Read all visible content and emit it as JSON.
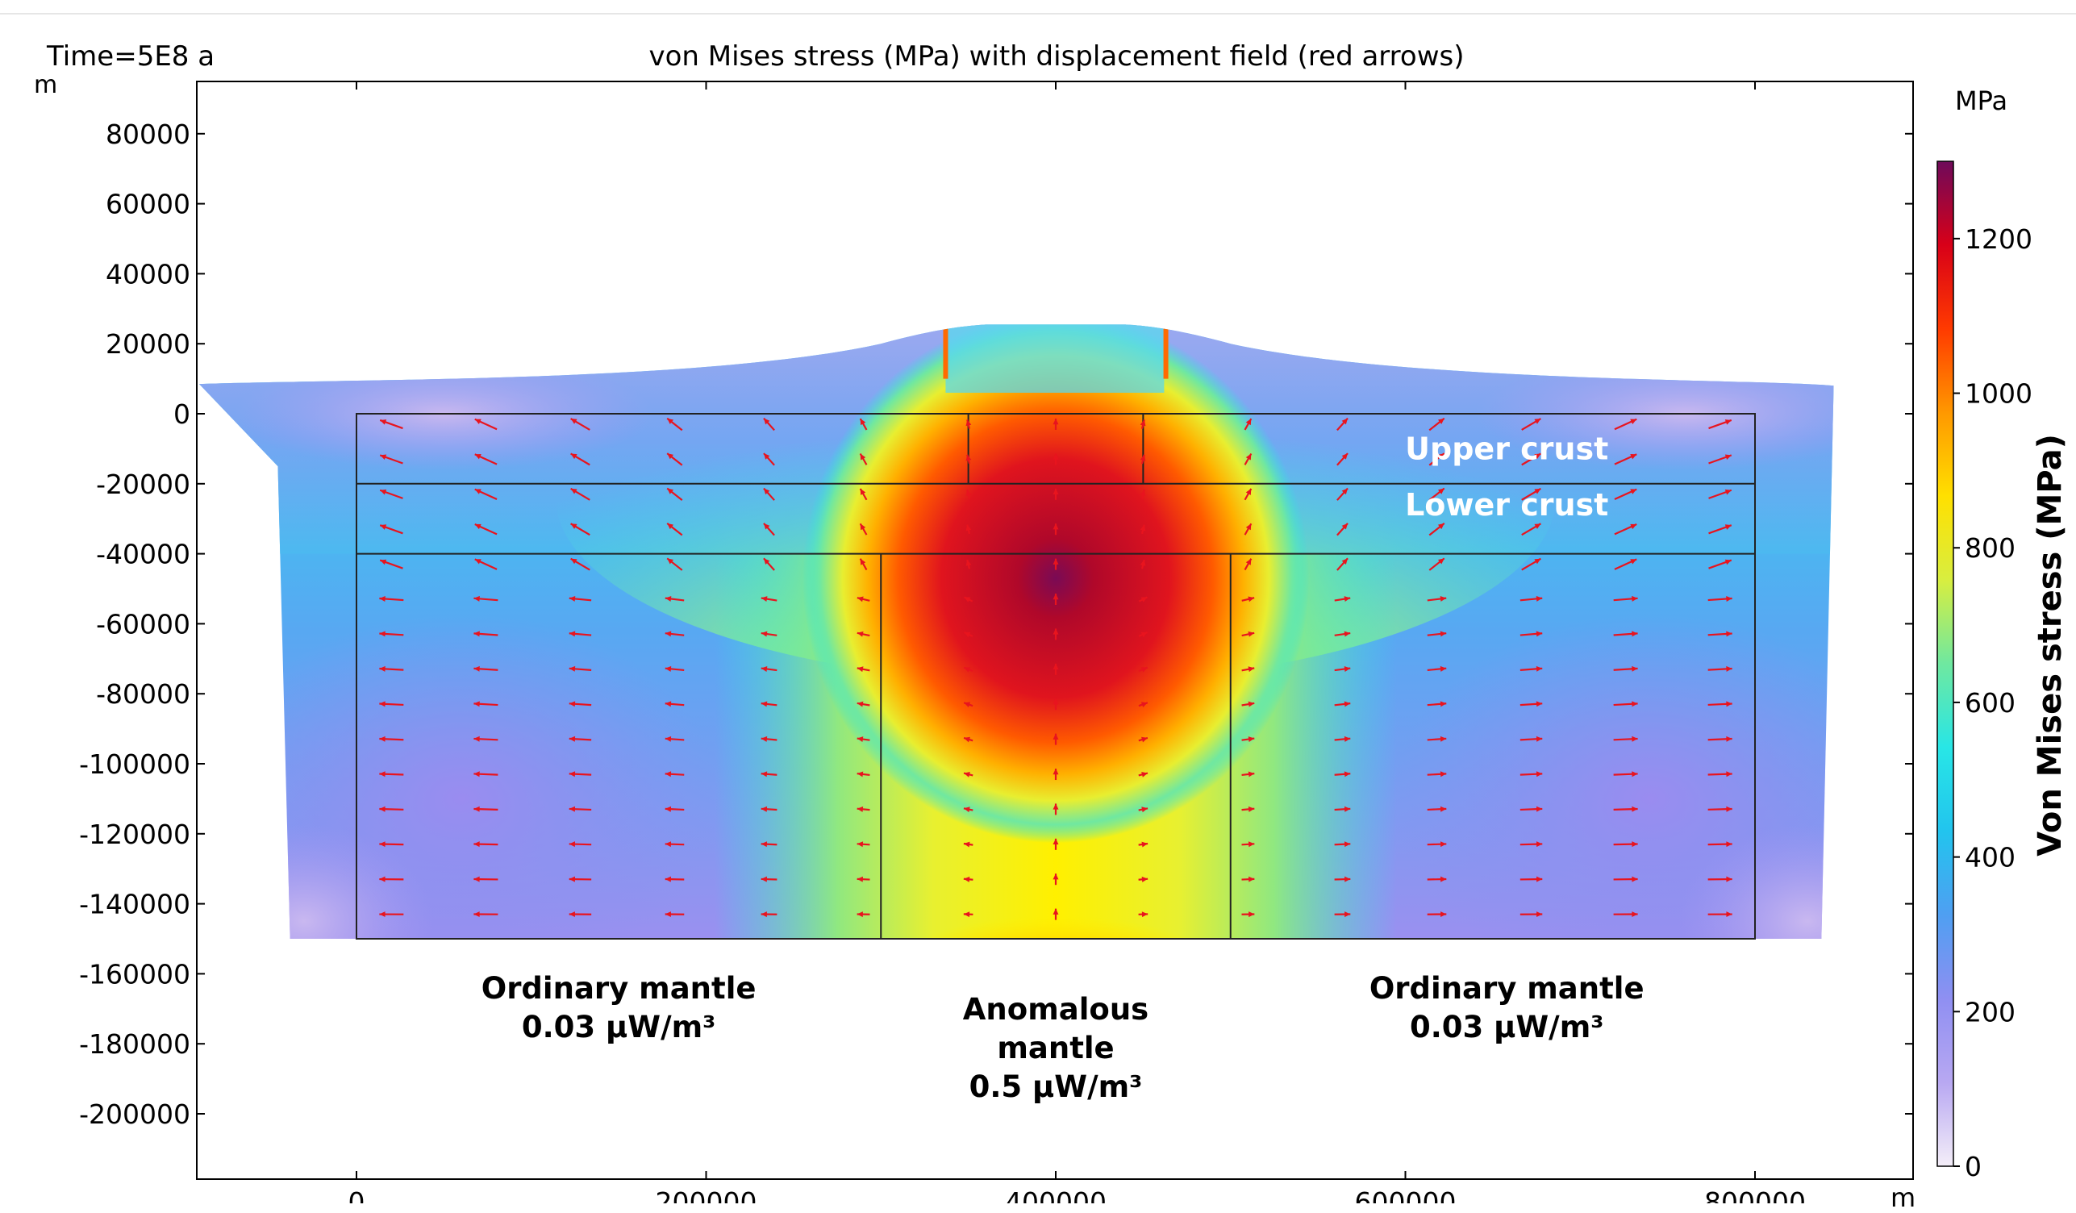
{
  "plot": {
    "time_label": "Time=5E8 a",
    "title": "von Mises stress (MPa) with displacement field (red arrows)",
    "y_unit": "m",
    "x_unit": "m"
  },
  "colorbar": {
    "unit": "MPa",
    "title": "Von Mises stress (MPa)",
    "range": [
      0,
      1300
    ],
    "ticks": [
      0,
      200,
      400,
      600,
      800,
      1000,
      1200
    ],
    "colormap": [
      "#f4eef8",
      "#b8a8f2",
      "#8f8ff2",
      "#4f9ff2",
      "#22c4ee",
      "#28e6e6",
      "#6fe8a0",
      "#d8ee40",
      "#ffe000",
      "#ff9800",
      "#ff3a00",
      "#d80018",
      "#6e0a5a"
    ]
  },
  "chart_data": {
    "type": "heatmap",
    "title": "von Mises stress (MPa) with displacement field (red arrows)",
    "xlabel": "m",
    "ylabel": "m",
    "xlim": [
      -90000,
      890000
    ],
    "ylim": [
      -218000,
      95000
    ],
    "x_ticks": [
      0,
      200000,
      400000,
      600000,
      800000
    ],
    "y_ticks": [
      80000,
      60000,
      40000,
      20000,
      0,
      -20000,
      -40000,
      -60000,
      -80000,
      -100000,
      -120000,
      -140000,
      -160000,
      -180000,
      -200000
    ],
    "field": "von Mises stress (MPa)",
    "max_stress_approx": 1300,
    "domain_boundaries": {
      "outer": {
        "x": [
          0,
          800000
        ],
        "y": [
          -150000,
          0
        ]
      },
      "crust_interfaces_y": [
        -20000,
        -40000
      ],
      "upper_crust_block_x": [
        350000,
        450000
      ],
      "anomalous_mantle_x": [
        300000,
        500000
      ]
    },
    "region_labels": [
      {
        "text": "Upper crust",
        "x": 658000,
        "y": -13000
      },
      {
        "text": "Lower crust",
        "x": 658000,
        "y": -29000
      },
      {
        "text": "Ordinary mantle\n0.03 µW/m³",
        "x": 150000,
        "y": -167000
      },
      {
        "text": "Anomalous\nmantle\n0.5 µW/m³",
        "x": 400000,
        "y": -173000
      },
      {
        "text": "Ordinary mantle\n0.03 µW/m³",
        "x": 658000,
        "y": -167000
      }
    ],
    "arrows": {
      "color": "#e8141e",
      "x_positions": [
        20000,
        74000,
        128000,
        182000,
        236000,
        290000,
        350000,
        400000,
        450000,
        510000,
        564000,
        618000,
        672000,
        726000,
        780000
      ],
      "y_positions": [
        -3000,
        -13000,
        -23000,
        -33000,
        -43000,
        -53000,
        -63000,
        -73000,
        -83000,
        -93000,
        -103000,
        -113000,
        -123000,
        -133000,
        -143000
      ]
    }
  }
}
